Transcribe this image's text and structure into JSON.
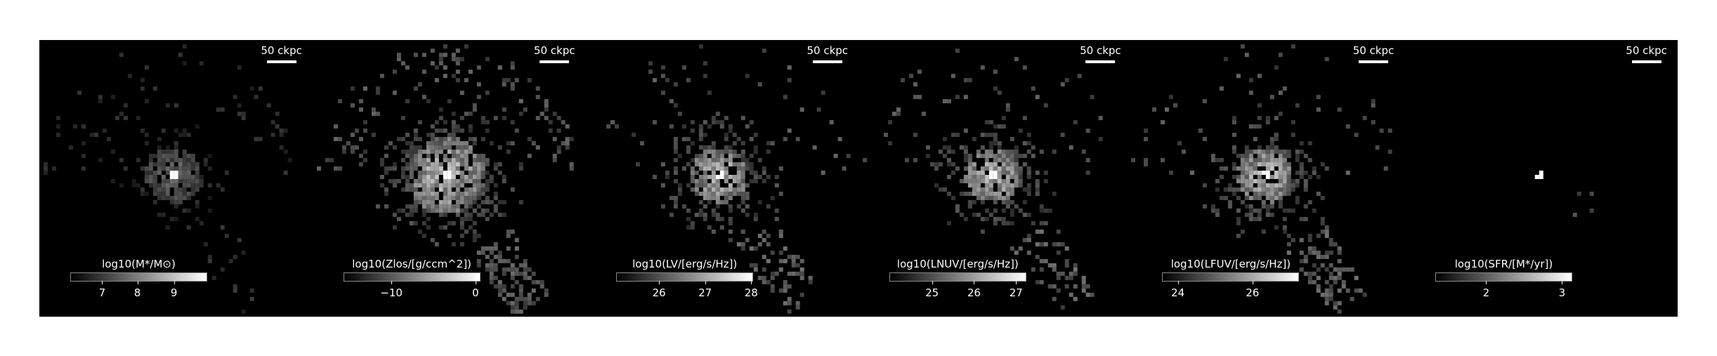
{
  "panels": [
    {
      "scale_label": "50 ckpc",
      "cbar_label": "log10(M*/M⊙)",
      "cbar_ticks": [
        {
          "label": "7",
          "frac": 0.23
        },
        {
          "label": "8",
          "frac": 0.49
        },
        {
          "label": "9",
          "frac": 0.76
        }
      ],
      "style": "mass"
    },
    {
      "scale_label": "50 ckpc",
      "cbar_label": "log10(Zlos/[g/ccm^2])",
      "cbar_ticks": [
        {
          "label": "−10",
          "frac": 0.35
        },
        {
          "label": "0",
          "frac": 0.97
        }
      ],
      "style": "metal"
    },
    {
      "scale_label": "50 ckpc",
      "cbar_label": "log10(LV/[erg/s/Hz])",
      "cbar_ticks": [
        {
          "label": "26",
          "frac": 0.31
        },
        {
          "label": "27",
          "frac": 0.65
        },
        {
          "label": "28",
          "frac": 0.99
        }
      ],
      "style": "lum"
    },
    {
      "scale_label": "50 ckpc",
      "cbar_label": "log10(LNUV/[erg/s/Hz])",
      "cbar_ticks": [
        {
          "label": "25",
          "frac": 0.31
        },
        {
          "label": "26",
          "frac": 0.62
        },
        {
          "label": "27",
          "frac": 0.93
        }
      ],
      "style": "lum"
    },
    {
      "scale_label": "50 ckpc",
      "cbar_label": "log10(LFUV/[erg/s/Hz])",
      "cbar_ticks": [
        {
          "label": "24",
          "frac": 0.11
        },
        {
          "label": "26",
          "frac": 0.66
        }
      ],
      "style": "lum"
    },
    {
      "scale_label": "50 ckpc",
      "cbar_label": "log10(SFR/[M*/yr])",
      "cbar_ticks": [
        {
          "label": "2",
          "frac": 0.37
        },
        {
          "label": "3",
          "frac": 0.93
        }
      ],
      "style": "sfr"
    }
  ]
}
